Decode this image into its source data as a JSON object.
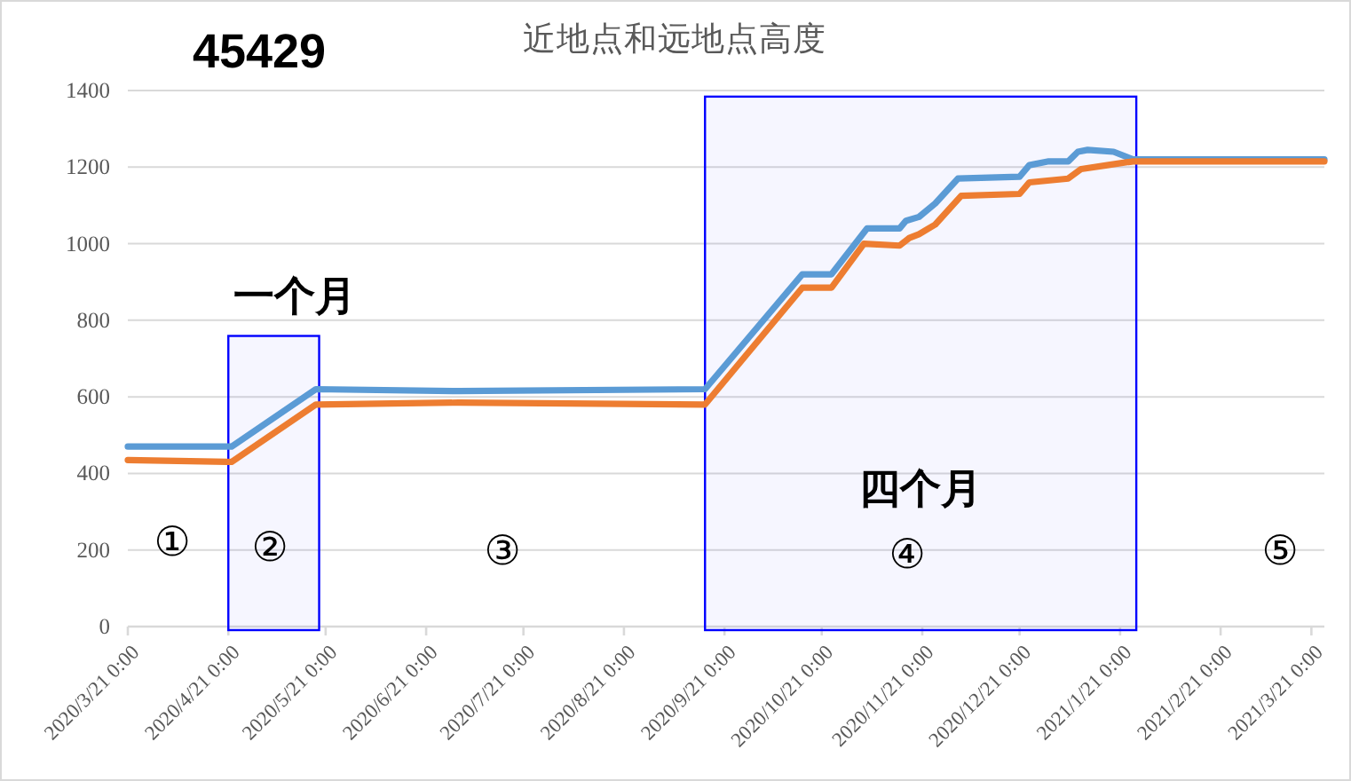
{
  "chart_data": {
    "type": "line",
    "title": "近地点和远地点高度",
    "series": [
      {
        "color": "#5b9bd5",
        "x": [
          "2020-03-21",
          "2020-04-22",
          "2020-05-18",
          "2020-07-01",
          "2020-09-15",
          "2020-10-15",
          "2020-10-24",
          "2020-11-04",
          "2020-11-14",
          "2020-11-16",
          "2020-11-20",
          "2020-11-25",
          "2020-12-02",
          "2020-12-21",
          "2020-12-24",
          "2020-12-30",
          "2021-01-05",
          "2021-01-08",
          "2021-01-11",
          "2021-01-19",
          "2021-01-25",
          "2021-03-25"
        ],
        "values": [
          470,
          470,
          620,
          615,
          620,
          920,
          920,
          1040,
          1040,
          1060,
          1070,
          1105,
          1170,
          1175,
          1205,
          1215,
          1215,
          1240,
          1245,
          1240,
          1220,
          1220
        ]
      },
      {
        "color": "#ed7d31",
        "x": [
          "2020-03-21",
          "2020-04-22",
          "2020-05-18",
          "2020-07-01",
          "2020-09-15",
          "2020-10-15",
          "2020-10-24",
          "2020-11-03",
          "2020-11-14",
          "2020-11-17",
          "2020-11-20",
          "2020-11-25",
          "2020-12-03",
          "2020-12-21",
          "2020-12-24",
          "2021-01-05",
          "2021-01-09",
          "2021-01-17",
          "2021-01-25",
          "2021-03-25"
        ],
        "values": [
          435,
          430,
          580,
          585,
          580,
          885,
          885,
          1000,
          995,
          1015,
          1025,
          1050,
          1125,
          1130,
          1160,
          1170,
          1195,
          1205,
          1215,
          1215
        ]
      }
    ],
    "xlim": [
      "2020-03-21",
      "2021-03-25"
    ],
    "xticks": [
      {
        "value": "2020-03-21",
        "label": "2020/3/21 0:00"
      },
      {
        "value": "2020-04-21",
        "label": "2020/4/21 0:00"
      },
      {
        "value": "2020-05-21",
        "label": "2020/5/21 0:00"
      },
      {
        "value": "2020-06-21",
        "label": "2020/6/21 0:00"
      },
      {
        "value": "2020-07-21",
        "label": "2020/7/21 0:00"
      },
      {
        "value": "2020-08-21",
        "label": "2020/8/21 0:00"
      },
      {
        "value": "2020-09-21",
        "label": "2020/9/21 0:00"
      },
      {
        "value": "2020-10-21",
        "label": "2020/10/21 0:00"
      },
      {
        "value": "2020-11-21",
        "label": "2020/11/21 0:00"
      },
      {
        "value": "2020-12-21",
        "label": "2020/12/21 0:00"
      },
      {
        "value": "2021-01-21",
        "label": "2021/1/21 0:00"
      },
      {
        "value": "2021-02-21",
        "label": "2021/2/21 0:00"
      },
      {
        "value": "2021-03-21",
        "label": "2021/3/21 0:00"
      }
    ],
    "ylim": [
      0,
      1400
    ],
    "yticks": [
      0,
      200,
      400,
      600,
      800,
      1000,
      1200,
      1400
    ],
    "grid": "y",
    "line_style": "solid",
    "bands": [
      {
        "axis": "x",
        "from": "2020-04-21",
        "to": "2020-05-19",
        "label": "一个月",
        "color": "#0000ff"
      },
      {
        "axis": "x",
        "from": "2020-09-15",
        "to": "2021-01-26",
        "label": "四个月",
        "color": "#0000ff"
      }
    ],
    "annotations": [
      "45429",
      "①",
      "②",
      "③",
      "④",
      "⑤"
    ]
  }
}
